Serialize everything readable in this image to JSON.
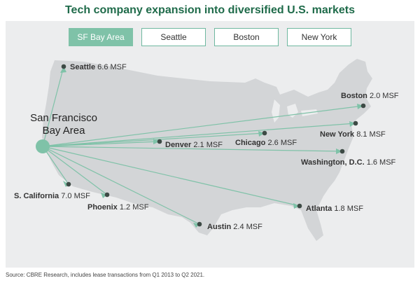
{
  "title": "Tech company expansion into diversified U.S. markets",
  "tabs": [
    {
      "label": "SF Bay Area",
      "active": true
    },
    {
      "label": "Seattle",
      "active": false
    },
    {
      "label": "Boston",
      "active": false
    },
    {
      "label": "New York",
      "active": false
    }
  ],
  "origin": {
    "line1": "San Francisco",
    "line2": "Bay Area"
  },
  "destinations": [
    {
      "city": "Seattle",
      "value": "6.6 MSF"
    },
    {
      "city": "Boston",
      "value": "2.0 MSF"
    },
    {
      "city": "New York",
      "value": "8.1 MSF"
    },
    {
      "city": "Chicago",
      "value": "2.6 MSF"
    },
    {
      "city": "Denver",
      "value": "2.1 MSF"
    },
    {
      "city": "Washington, D.C.",
      "value": "1.6 MSF"
    },
    {
      "city": "S. California",
      "value": "7.0 MSF"
    },
    {
      "city": "Phoenix",
      "value": "1.2 MSF"
    },
    {
      "city": "Austin",
      "value": "2.4 MSF"
    },
    {
      "city": "Atlanta",
      "value": "1.8 MSF"
    }
  ],
  "source": "Source: CBRE Research, includes lease transactions from Q1 2013 to Q2 2021.",
  "colors": {
    "accent": "#7fc2a8",
    "title": "#1f6b4a",
    "land": "#d3d5d7",
    "background": "#ecedee",
    "dot": "#3d4a45"
  }
}
